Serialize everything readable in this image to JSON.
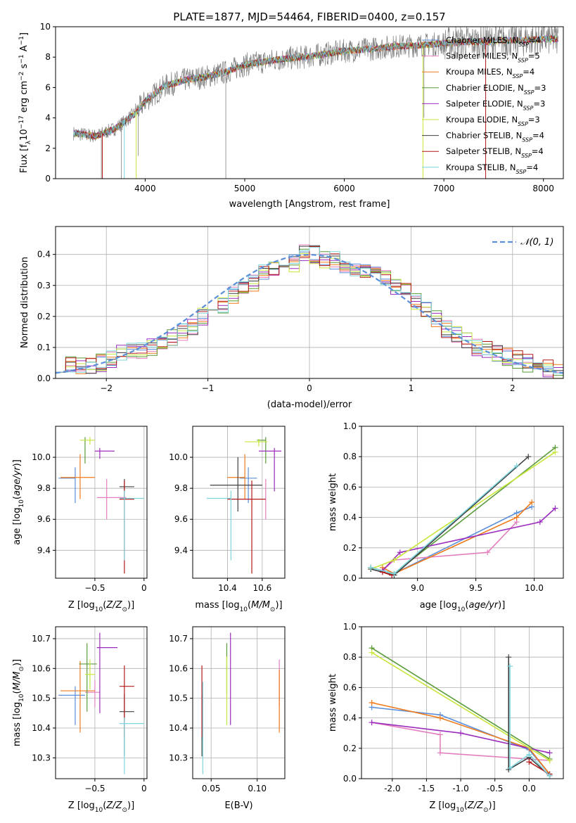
{
  "title": "PLATE=1877, MJD=54464, FIBERID=0400, z=0.157",
  "chart_data": [
    {
      "type": "line",
      "panel": "spectrum",
      "title": "PLATE=1877, MJD=54464, FIBERID=0400, z=0.157",
      "xlabel": "wavelength [Angstrom, rest frame]",
      "ylabel": "Flux [f_λ 10^-17 erg cm^-2 s^-1 A^-1]",
      "xlim": [
        3100,
        8200
      ],
      "ylim": [
        0,
        10
      ],
      "xticks": [
        4000,
        5000,
        6000,
        7000,
        8000
      ],
      "yticks": [
        0,
        2,
        4,
        6,
        8,
        10
      ],
      "grid": false,
      "legend": "top-right",
      "continuum": {
        "x": [
          3280,
          3500,
          3700,
          3900,
          4000,
          4200,
          4400,
          4600,
          4800,
          5000,
          5200,
          5400,
          5600,
          5800,
          6000,
          6200,
          6500,
          6800,
          7000,
          7200,
          7400,
          7600,
          7800,
          8000,
          8150
        ],
        "y": [
          3.0,
          2.8,
          3.3,
          4.3,
          5.1,
          6.1,
          6.5,
          6.7,
          7.0,
          7.5,
          7.7,
          7.9,
          8.0,
          8.2,
          8.4,
          8.5,
          8.7,
          8.8,
          8.9,
          9.0,
          9.0,
          9.1,
          9.1,
          9.2,
          9.2
        ]
      },
      "series": [
        {
          "name": "Chabrier MILES, N_SSP=4",
          "label_main": "Chabrier MILES, N",
          "label_sub": "SSP",
          "label_tail": "=4",
          "color": "#5b8fd9"
        },
        {
          "name": "Salpeter MILES, N_SSP=5",
          "label_main": "Salpeter MILES, N",
          "label_sub": "SSP",
          "label_tail": "=5",
          "color": "#e37fbf"
        },
        {
          "name": "Kroupa MILES, N_SSP=4",
          "label_main": "Kroupa MILES, N",
          "label_sub": "SSP",
          "label_tail": "=4",
          "color": "#f07a1a"
        },
        {
          "name": "Chabrier ELODIE, N_SSP=3",
          "label_main": "Chabrier ELODIE, N",
          "label_sub": "SSP",
          "label_tail": "=3",
          "color": "#5a9b3a"
        },
        {
          "name": "Salpeter ELODIE, N_SSP=3",
          "label_main": "Salpeter ELODIE, N",
          "label_sub": "SSP",
          "label_tail": "=3",
          "color": "#9b2dbd"
        },
        {
          "name": "Kroupa ELODIE, N_SSP=3",
          "label_main": "Kroupa ELODIE, N",
          "label_sub": "SSP",
          "label_tail": "=3",
          "color": "#c8e63c"
        },
        {
          "name": "Chabrier STELIB, N_SSP=4",
          "label_main": "Chabrier STELIB, N",
          "label_sub": "SSP",
          "label_tail": "=4",
          "color": "#404040"
        },
        {
          "name": "Salpeter STELIB, N_SSP=4",
          "label_main": "Salpeter STELIB, N",
          "label_sub": "SSP",
          "label_tail": "=4",
          "color": "#b41a1a"
        },
        {
          "name": "Kroupa STELIB, N_SSP=4",
          "label_main": "Kroupa STELIB, N",
          "label_sub": "SSP",
          "label_tail": "=4",
          "color": "#7fd6de"
        }
      ]
    },
    {
      "type": "bar",
      "panel": "residual-histogram",
      "xlabel": "(data-model)/error",
      "ylabel": "Normed distribution",
      "xlim": [
        -2.5,
        2.5
      ],
      "ylim": [
        0,
        0.49
      ],
      "xticks": [
        -2,
        -1,
        0,
        1,
        2
      ],
      "yticks": [
        0.0,
        0.1,
        0.2,
        0.3,
        0.4
      ],
      "grid": true,
      "legend": "top-right",
      "reference_curve": {
        "name": "N(0,1)",
        "label": "𝒩(0, 1)",
        "color": "#5b8fd9",
        "dashed": true
      },
      "bin_width": 0.1,
      "bin_start": -2.5,
      "values": [
        0.05,
        0.04,
        0.045,
        0.04,
        0.05,
        0.065,
        0.08,
        0.09,
        0.085,
        0.1,
        0.11,
        0.13,
        0.15,
        0.17,
        0.2,
        0.22,
        0.24,
        0.27,
        0.29,
        0.31,
        0.34,
        0.36,
        0.36,
        0.37,
        0.41,
        0.4,
        0.38,
        0.38,
        0.37,
        0.35,
        0.34,
        0.33,
        0.32,
        0.3,
        0.28,
        0.25,
        0.22,
        0.19,
        0.16,
        0.14,
        0.12,
        0.1,
        0.09,
        0.08,
        0.07,
        0.06,
        0.05,
        0.04,
        0.03,
        0.02
      ]
    },
    {
      "type": "scatter",
      "panel": "age-vs-metallicity",
      "xlabel": "Z [log10(Z/Z⊙)]",
      "ylabel": "age [log10(age/yr)]",
      "xlim": [
        -0.9,
        0.03
      ],
      "ylim": [
        9.22,
        10.2
      ],
      "xticks": [
        -0.5,
        0.0
      ],
      "yticks": [
        9.4,
        9.6,
        9.8,
        10.0
      ],
      "grid": true,
      "points": [
        {
          "x": -0.7,
          "y": 9.865,
          "xerr": [
            0.17,
            0.0
          ],
          "yerr": [
            0.16,
            0.07
          ],
          "color": "#5b8fd9"
        },
        {
          "x": -0.38,
          "y": 9.74,
          "xerr": [
            0.1,
            0.2
          ],
          "yerr": [
            0.14,
            0.12
          ],
          "color": "#e37fbf"
        },
        {
          "x": -0.65,
          "y": 9.87,
          "xerr": [
            0.2,
            0.15
          ],
          "yerr": [
            0.14,
            0.15
          ],
          "color": "#f07a1a"
        },
        {
          "x": -0.6,
          "y": 10.11,
          "xerr": [
            0.0,
            0.0
          ],
          "yerr": [
            0.15,
            0.02
          ],
          "color": "#5a9b3a"
        },
        {
          "x": -0.45,
          "y": 10.04,
          "xerr": [
            0.05,
            0.15
          ],
          "yerr": [
            0.05,
            0.02
          ],
          "color": "#9b2dbd"
        },
        {
          "x": -0.55,
          "y": 10.11,
          "xerr": [
            0.1,
            0.05
          ],
          "yerr": [
            0.03,
            0.02
          ],
          "color": "#c8e63c"
        },
        {
          "x": -0.2,
          "y": 9.81,
          "xerr": [
            0.05,
            0.1
          ],
          "yerr": [
            0.07,
            0.05
          ],
          "color": "#404040"
        },
        {
          "x": -0.2,
          "y": 9.73,
          "xerr": [
            0.05,
            0.1
          ],
          "yerr": [
            0.48,
            0.12
          ],
          "color": "#b41a1a"
        },
        {
          "x": -0.2,
          "y": 9.735,
          "xerr": [
            0.05,
            0.2
          ],
          "yerr": [
            0.4,
            0.05
          ],
          "color": "#7fd6de"
        }
      ]
    },
    {
      "type": "scatter",
      "panel": "age-vs-mass",
      "xlabel": "mass [log10(M/M⊙)]",
      "ylabel": "",
      "xlim": [
        10.2,
        10.73
      ],
      "ylim": [
        9.22,
        10.2
      ],
      "xticks": [
        10.4,
        10.6
      ],
      "yticks": [
        9.4,
        9.6,
        9.8,
        10.0
      ],
      "grid": true,
      "points": [
        {
          "x": 10.52,
          "y": 9.865,
          "xerr": [
            0.05,
            0.05
          ],
          "yerr": [
            0.16,
            0.07
          ],
          "color": "#5b8fd9"
        },
        {
          "x": 10.62,
          "y": 9.74,
          "xerr": [
            0.0,
            0.0
          ],
          "yerr": [
            0.14,
            0.12
          ],
          "color": "#e37fbf"
        },
        {
          "x": 10.5,
          "y": 9.87,
          "xerr": [
            0.1,
            0.0
          ],
          "yerr": [
            0.14,
            0.15
          ],
          "color": "#f07a1a"
        },
        {
          "x": 10.62,
          "y": 10.11,
          "xerr": [
            0.05,
            0.0
          ],
          "yerr": [
            0.15,
            0.02
          ],
          "color": "#5a9b3a"
        },
        {
          "x": 10.67,
          "y": 10.04,
          "xerr": [
            0.09,
            0.04
          ],
          "yerr": [
            0.26,
            0.02
          ],
          "color": "#9b2dbd"
        },
        {
          "x": 10.58,
          "y": 10.1,
          "xerr": [
            0.08,
            0.05
          ],
          "yerr": [
            0.03,
            0.02
          ],
          "color": "#c8e63c"
        },
        {
          "x": 10.46,
          "y": 9.82,
          "xerr": [
            0.16,
            0.14
          ],
          "yerr": [
            0.17,
            0.18
          ],
          "color": "#404040"
        },
        {
          "x": 10.54,
          "y": 9.73,
          "xerr": [
            0.14,
            0.08
          ],
          "yerr": [
            0.48,
            0.12
          ],
          "color": "#b41a1a"
        },
        {
          "x": 10.42,
          "y": 9.735,
          "xerr": [
            0.14,
            0.0
          ],
          "yerr": [
            0.4,
            0.05
          ],
          "color": "#7fd6de"
        }
      ]
    },
    {
      "type": "line",
      "panel": "mass-weight-vs-age",
      "xlabel": "age [log10(age/yr)]",
      "ylabel": "mass weight",
      "xlim": [
        8.52,
        10.25
      ],
      "ylim": [
        0,
        1.0
      ],
      "xticks": [
        9.0,
        9.5,
        10.0
      ],
      "yticks": [
        0.0,
        0.2,
        0.4,
        0.6,
        0.8,
        1.0
      ],
      "grid": true,
      "series": [
        {
          "color": "#5b8fd9",
          "x": [
            8.6,
            8.8,
            9.85,
            9.98
          ],
          "y": [
            0.07,
            0.03,
            0.43,
            0.47
          ]
        },
        {
          "color": "#e37fbf",
          "x": [
            8.7,
            8.8,
            9.6,
            9.85
          ],
          "y": [
            0.05,
            0.12,
            0.17,
            0.37
          ]
        },
        {
          "color": "#f07a1a",
          "x": [
            8.7,
            8.8,
            9.85,
            9.98
          ],
          "y": [
            0.07,
            0.03,
            0.4,
            0.5
          ]
        },
        {
          "color": "#5a9b3a",
          "x": [
            8.6,
            8.8,
            10.18
          ],
          "y": [
            0.07,
            0.03,
            0.86
          ]
        },
        {
          "color": "#9b2dbd",
          "x": [
            8.7,
            8.85,
            10.05,
            10.18
          ],
          "y": [
            0.05,
            0.17,
            0.37,
            0.46
          ]
        },
        {
          "color": "#c8e63c",
          "x": [
            8.6,
            8.8,
            10.18
          ],
          "y": [
            0.06,
            0.12,
            0.83
          ]
        },
        {
          "color": "#404040",
          "x": [
            8.6,
            8.8,
            9.95
          ],
          "y": [
            0.06,
            0.02,
            0.8
          ]
        },
        {
          "color": "#b41a1a",
          "x": [
            8.7,
            8.78
          ],
          "y": [
            0.04,
            0.02
          ]
        },
        {
          "color": "#7fd6de",
          "x": [
            8.6,
            8.8,
            9.85
          ],
          "y": [
            0.07,
            0.03,
            0.74
          ]
        }
      ]
    },
    {
      "type": "scatter",
      "panel": "mass-vs-metallicity",
      "xlabel": "Z [log10(Z/Z⊙)]",
      "ylabel": "mass [log10(M/M⊙)]",
      "xlim": [
        -0.9,
        0.03
      ],
      "ylim": [
        10.23,
        10.74
      ],
      "xticks": [
        -0.5,
        0.0
      ],
      "yticks": [
        10.3,
        10.4,
        10.5,
        10.6,
        10.7
      ],
      "grid": true,
      "points": [
        {
          "x": -0.7,
          "y": 10.51,
          "xerr": [
            0.17,
            0.1
          ],
          "yerr": [
            0.1,
            0.03
          ],
          "color": "#5b8fd9"
        },
        {
          "x": -0.5,
          "y": 10.52,
          "xerr": [
            0.1,
            0.05
          ],
          "yerr": [
            0.05,
            0.04
          ],
          "color": "#e37fbf"
        },
        {
          "x": -0.65,
          "y": 10.525,
          "xerr": [
            0.2,
            0.15
          ],
          "yerr": [
            0.14,
            0.1
          ],
          "color": "#f07a1a"
        },
        {
          "x": -0.58,
          "y": 10.615,
          "xerr": [
            0.08,
            0.1
          ],
          "yerr": [
            0.16,
            0.07
          ],
          "color": "#5a9b3a"
        },
        {
          "x": -0.45,
          "y": 10.67,
          "xerr": [
            0.03,
            0.18
          ],
          "yerr": [
            0.22,
            0.05
          ],
          "color": "#9b2dbd"
        },
        {
          "x": -0.55,
          "y": 10.58,
          "xerr": [
            0.05,
            0.05
          ],
          "yerr": [
            0.05,
            0.05
          ],
          "color": "#c8e63c"
        },
        {
          "x": -0.2,
          "y": 10.455,
          "xerr": [
            0.05,
            0.1
          ],
          "yerr": [
            0.15,
            0.06
          ],
          "color": "#404040"
        },
        {
          "x": -0.2,
          "y": 10.54,
          "xerr": [
            0.05,
            0.1
          ],
          "yerr": [
            0.17,
            0.07
          ],
          "color": "#b41a1a"
        },
        {
          "x": -0.2,
          "y": 10.415,
          "xerr": [
            0.05,
            0.2
          ],
          "yerr": [
            0.17,
            0.02
          ],
          "color": "#7fd6de"
        }
      ]
    },
    {
      "type": "scatter",
      "panel": "mass-vs-extinction",
      "xlabel": "E(B-V)",
      "ylabel": "",
      "xlim": [
        0.03,
        0.13
      ],
      "ylim": [
        10.23,
        10.74
      ],
      "xticks": [
        0.05,
        0.1
      ],
      "yticks": [
        10.3,
        10.4,
        10.5,
        10.6,
        10.7
      ],
      "grid": true,
      "points": [
        {
          "x": 0.04,
          "y": 10.51,
          "xerr": [
            0,
            0
          ],
          "yerr": [
            0.15,
            0.04
          ],
          "color": "#5b8fd9"
        },
        {
          "x": 0.124,
          "y": 10.52,
          "xerr": [
            0,
            0
          ],
          "yerr": [
            0.05,
            0.11
          ],
          "color": "#e37fbf"
        },
        {
          "x": 0.124,
          "y": 10.525,
          "xerr": [
            0,
            0
          ],
          "yerr": [
            0.14,
            0.07
          ],
          "color": "#f07a1a"
        },
        {
          "x": 0.067,
          "y": 10.615,
          "xerr": [
            0,
            0
          ],
          "yerr": [
            0.1,
            0.07
          ],
          "color": "#5a9b3a"
        },
        {
          "x": 0.071,
          "y": 10.67,
          "xerr": [
            0,
            0
          ],
          "yerr": [
            0.26,
            0.05
          ],
          "color": "#9b2dbd"
        },
        {
          "x": 0.067,
          "y": 10.58,
          "xerr": [
            0,
            0
          ],
          "yerr": [
            0.17,
            0.06
          ],
          "color": "#c8e63c"
        },
        {
          "x": 0.04,
          "y": 10.455,
          "xerr": [
            0,
            0
          ],
          "yerr": [
            0.15,
            0.06
          ],
          "color": "#404040"
        },
        {
          "x": 0.04,
          "y": 10.54,
          "xerr": [
            0,
            0
          ],
          "yerr": [
            0.17,
            0.07
          ],
          "color": "#b41a1a"
        },
        {
          "x": 0.041,
          "y": 10.415,
          "xerr": [
            0,
            0
          ],
          "yerr": [
            0.17,
            0.14
          ],
          "color": "#7fd6de"
        }
      ]
    },
    {
      "type": "line",
      "panel": "mass-weight-vs-metallicity",
      "xlabel": "Z [log10(Z/Z⊙)]",
      "ylabel": "mass weight",
      "xlim": [
        -2.45,
        0.5
      ],
      "ylim": [
        0,
        1.0
      ],
      "xticks": [
        -2.0,
        -1.5,
        -1.0,
        -0.5,
        0.0
      ],
      "yticks": [
        0.0,
        0.2,
        0.4,
        0.6,
        0.8,
        1.0
      ],
      "grid": true,
      "series": [
        {
          "color": "#5b8fd9",
          "x": [
            -2.3,
            -1.3,
            0.0,
            0.3
          ],
          "y": [
            0.47,
            0.42,
            0.19,
            0.03
          ]
        },
        {
          "color": "#e37fbf",
          "x": [
            -2.3,
            -1.3,
            -1.3,
            0.3
          ],
          "y": [
            0.37,
            0.29,
            0.17,
            0.12
          ]
        },
        {
          "color": "#f07a1a",
          "x": [
            -2.3,
            -1.3,
            0.0,
            0.3
          ],
          "y": [
            0.5,
            0.4,
            0.2,
            0.03
          ]
        },
        {
          "color": "#5a9b3a",
          "x": [
            -2.3,
            0.3
          ],
          "y": [
            0.86,
            0.13
          ]
        },
        {
          "color": "#9b2dbd",
          "x": [
            -2.3,
            -1.0,
            0.3
          ],
          "y": [
            0.37,
            0.3,
            0.17
          ]
        },
        {
          "color": "#c8e63c",
          "x": [
            -2.3,
            0.3
          ],
          "y": [
            0.83,
            0.12
          ]
        },
        {
          "color": "#404040",
          "x": [
            -0.3,
            -0.3,
            0.0,
            0.3
          ],
          "y": [
            0.8,
            0.06,
            0.14,
            0.02
          ]
        },
        {
          "color": "#b41a1a",
          "x": [
            0.0,
            0.3
          ],
          "y": [
            0.11,
            0.03
          ]
        },
        {
          "color": "#7fd6de",
          "x": [
            -0.28,
            -0.28,
            0.0,
            0.3
          ],
          "y": [
            0.74,
            0.07,
            0.16,
            0.02
          ]
        }
      ]
    }
  ]
}
